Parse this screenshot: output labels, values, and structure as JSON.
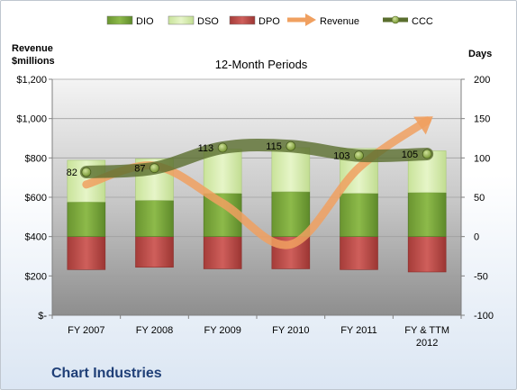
{
  "company": "Chart Industries",
  "colors": {
    "dio": "#7aa33a",
    "dso": "#d6ecb0",
    "dpo": "#c0504d",
    "revenue": "#f0a060",
    "ccc": "#5a6e2e"
  },
  "chart_data": {
    "type": "bar",
    "title": "12-Month Periods",
    "ylabel_left": "Revenue\n$millions",
    "ylabel_right": "Days",
    "categories": [
      "FY 2007",
      "FY 2008",
      "FY 2009",
      "FY 2010",
      "FY 2011",
      "FY & TTM\n2012"
    ],
    "left_axis": {
      "range": [
        0,
        1200
      ],
      "ticks": [
        {
          "value": 0,
          "label": "$-"
        },
        {
          "value": 200,
          "label": "$200"
        },
        {
          "value": 400,
          "label": "$400"
        },
        {
          "value": 600,
          "label": "$600"
        },
        {
          "value": 800,
          "label": "$800"
        },
        {
          "value": 1000,
          "label": "$1,000"
        },
        {
          "value": 1200,
          "label": "$1,200"
        }
      ]
    },
    "right_axis": {
      "range": [
        -100,
        200
      ],
      "ticks": [
        {
          "value": -100,
          "label": "-100"
        },
        {
          "value": -50,
          "label": "-50"
        },
        {
          "value": 0,
          "label": "0"
        },
        {
          "value": 50,
          "label": "50"
        },
        {
          "value": 100,
          "label": "100"
        },
        {
          "value": 150,
          "label": "150"
        },
        {
          "value": 200,
          "label": "200"
        }
      ]
    },
    "legend": {
      "placement": "top",
      "entries": [
        {
          "key": "dio",
          "label": "DIO",
          "kind": "bar"
        },
        {
          "key": "dso",
          "label": "DSO",
          "kind": "bar"
        },
        {
          "key": "dpo",
          "label": "DPO",
          "kind": "bar"
        },
        {
          "key": "revenue",
          "label": "Revenue",
          "kind": "arrow"
        },
        {
          "key": "ccc",
          "label": "CCC",
          "kind": "line-marker"
        }
      ]
    },
    "series": [
      {
        "key": "dio",
        "label": "DIO",
        "axis": "right",
        "values": [
          44,
          46,
          55,
          57,
          55,
          56
        ]
      },
      {
        "key": "dso",
        "label": "DSO",
        "axis": "right",
        "values": [
          53,
          53,
          56,
          56,
          57,
          53
        ]
      },
      {
        "key": "dpo",
        "label": "DPO",
        "axis": "right",
        "values": [
          -42,
          -39,
          -41,
          -41,
          -42,
          -45
        ]
      },
      {
        "key": "revenue",
        "label": "Revenue",
        "axis": "left",
        "values": [
          665,
          760,
          570,
          360,
          750,
          990
        ]
      },
      {
        "key": "ccc",
        "label": "CCC",
        "axis": "right",
        "values": [
          82,
          87,
          113,
          115,
          103,
          105
        ],
        "labels": [
          "82",
          "87",
          "113",
          "115",
          "103",
          "105"
        ]
      }
    ],
    "grid": true
  }
}
